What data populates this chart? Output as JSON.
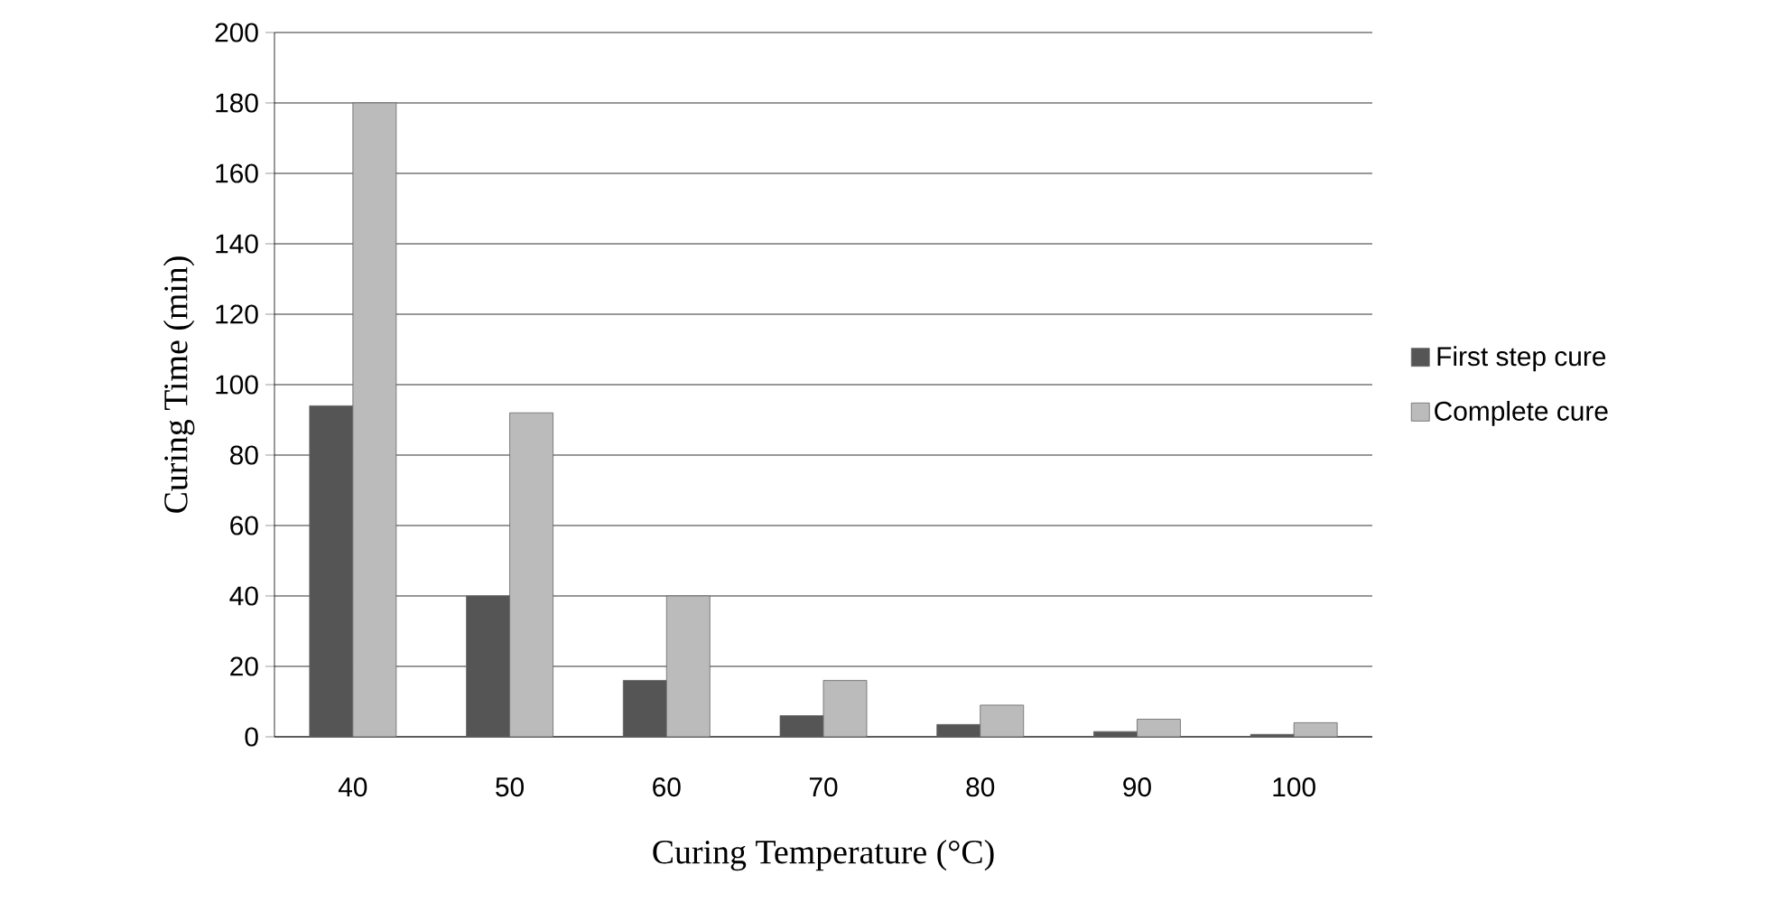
{
  "chart_data": {
    "type": "bar",
    "xlabel": "Curing Temperature (°C)",
    "ylabel": "Curing Time (min)",
    "categories": [
      "40",
      "50",
      "60",
      "70",
      "80",
      "90",
      "100"
    ],
    "series": [
      {
        "name": "First step cure",
        "color": "#555555",
        "values": [
          94,
          40,
          16,
          6,
          3.5,
          1.5,
          0.7
        ]
      },
      {
        "name": "Complete cure",
        "color": "#bbbbbb",
        "values": [
          180,
          92,
          40,
          16,
          9,
          5,
          4
        ]
      }
    ],
    "ylim": [
      0,
      200
    ],
    "yticks": [
      0,
      20,
      40,
      60,
      80,
      100,
      120,
      140,
      160,
      180,
      200
    ],
    "grid": "y",
    "legend": "right"
  }
}
